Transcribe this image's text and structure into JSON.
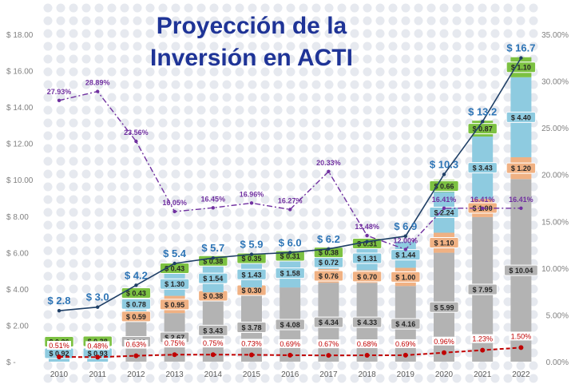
{
  "chart_data": {
    "type": "bar",
    "title_lines": [
      "Proyección de la",
      "Inversión en ACTI"
    ],
    "categories": [
      "2010",
      "2011",
      "2012",
      "2013",
      "2014",
      "2015",
      "2016",
      "2017",
      "2018",
      "2019",
      "2020",
      "2021",
      "2022"
    ],
    "left_axis": {
      "ylim": [
        0,
        18
      ],
      "ticks": [
        "$ -",
        "$ 2.00",
        "$ 4.00",
        "$ 6.00",
        "$ 8.00",
        "$ 10.00",
        "$ 12.00",
        "$ 14.00",
        "$ 16.00",
        "$ 18.00"
      ]
    },
    "right_axis": {
      "ylim": [
        0,
        35
      ],
      "ticks": [
        "0.00%",
        "5.00%",
        "10.00%",
        "15.00%",
        "20.00%",
        "25.00%",
        "30.00%",
        "35.00%"
      ]
    },
    "stacks": [
      {
        "color": "#b3b3b3",
        "values": [
          0.0,
          0.0,
          2.19,
          2.67,
          3.43,
          3.78,
          4.08,
          4.34,
          4.33,
          4.16,
          5.99,
          7.95,
          10.04
        ],
        "labels": [
          "$ -",
          "$ -",
          "$ 2.19",
          "$ 2.67",
          "$ 3.43",
          "$ 3.78",
          "$ 4.08",
          "$ 4.34",
          "$ 4.33",
          "$ 4.16",
          "$ 5.99",
          "$ 7.95",
          "$ 10.04"
        ]
      },
      {
        "color": "#f0b183",
        "values": [
          0.0,
          0.0,
          0.59,
          0.95,
          0.38,
          0.3,
          0.0,
          0.76,
          0.7,
          1.0,
          1.1,
          1.0,
          1.2
        ],
        "labels": [
          "$ -",
          "$ -",
          "$ 0.59",
          "$ 0.95",
          "$ 0.38",
          "$ 0.30",
          "",
          "$ 0.76",
          "$ 0.70",
          "$ 1.00",
          "$ 1.10",
          "$ 1.00",
          "$ 1.20"
        ]
      },
      {
        "color": "#8ecbe0",
        "values": [
          0.92,
          0.93,
          0.78,
          1.3,
          1.54,
          1.43,
          1.58,
          0.72,
          1.31,
          1.44,
          2.24,
          3.43,
          4.4
        ],
        "labels": [
          "$ 0.92",
          "$ 0.93",
          "$ 0.78",
          "$ 1.30",
          "$ 1.54",
          "$ 1.43",
          "$ 1.58",
          "$ 0.72",
          "$ 1.31",
          "$ 1.44",
          "$ 2.24",
          "$ 3.43",
          "$ 4.40"
        ]
      },
      {
        "color": "#7cc142",
        "values": [
          0.36,
          0.38,
          0.43,
          0.43,
          0.38,
          0.35,
          0.31,
          0.38,
          0.31,
          0.0,
          0.66,
          0.87,
          1.1
        ],
        "labels": [
          "$ 0.36",
          "$ 0.38",
          "$ 0.43",
          "$ 0.43",
          "$ 0.38",
          "$ 0.35",
          "$ 0.31",
          "$ 0.38",
          "$ 0.31",
          "",
          "$ 0.66",
          "$ 0.87",
          "$ 1.10"
        ]
      }
    ],
    "total_series": {
      "color": "#1f3f66",
      "label_color": "#2e75b6",
      "values": [
        2.8,
        3.0,
        4.2,
        5.4,
        5.7,
        5.9,
        6.0,
        6.2,
        6.6,
        6.9,
        10.3,
        13.2,
        16.7
      ],
      "labels": [
        "$ 2.8",
        "$ 3.0",
        "$ 4.2",
        "$ 5.4",
        "$ 5.7",
        "$ 5.9",
        "$ 6.0",
        "$ 6.2",
        "",
        "$ 6.9",
        "$ 10.3",
        "$ 13.2",
        "$ 16.7"
      ]
    },
    "pct_series": {
      "color": "#7030a0",
      "label_color": "#7030a0",
      "values": [
        27.93,
        28.89,
        23.56,
        16.05,
        16.45,
        16.96,
        16.27,
        20.33,
        13.48,
        12.0,
        16.41,
        16.41,
        16.41
      ],
      "labels": [
        "27.93%",
        "28.89%",
        "23.56%",
        "16.05%",
        "16.45%",
        "16.96%",
        "16.27%",
        "20.33%",
        "13.48%",
        "12.00%",
        "16.41%",
        "16.41%",
        "16.41%"
      ]
    },
    "gdp_series": {
      "color": "#c00000",
      "values": [
        0.51,
        0.48,
        0.63,
        0.75,
        0.75,
        0.73,
        0.69,
        0.67,
        0.68,
        0.69,
        0.96,
        1.23,
        1.5
      ],
      "labels": [
        "0.51%",
        "0.48%",
        "0.63%",
        "0.75%",
        "0.75%",
        "0.73%",
        "0.69%",
        "0.67%",
        "0.68%",
        "0.69%",
        "0.96%",
        "1.23%",
        "1.50%"
      ]
    }
  }
}
